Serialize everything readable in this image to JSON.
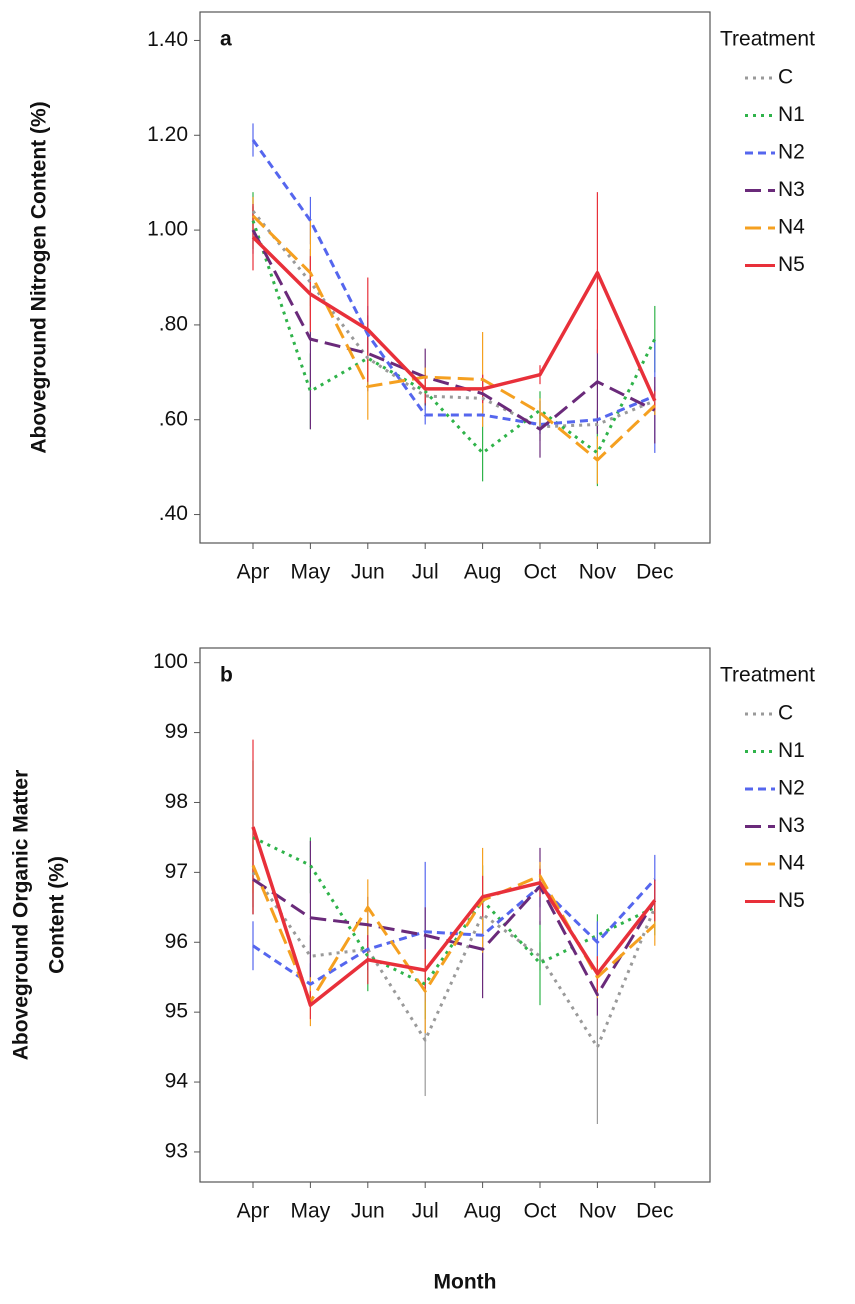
{
  "chart_data": [
    {
      "type": "line",
      "panel_label": "a",
      "y_label": [
        "Aboveground Nitrogen Content (%)"
      ],
      "legend_title": "Treatment",
      "categories": [
        "Apr",
        "May",
        "Jun",
        "Jul",
        "Aug",
        "Oct",
        "Nov",
        "Dec"
      ],
      "ylim": [
        0.34,
        1.46
      ],
      "yticks": [
        {
          "value": 0.4,
          "label": ".40"
        },
        {
          "value": 0.6,
          "label": ".60"
        },
        {
          "value": 0.8,
          "label": ".80"
        },
        {
          "value": 1.0,
          "label": "1.00"
        },
        {
          "value": 1.2,
          "label": "1.20"
        },
        {
          "value": 1.4,
          "label": "1.40"
        }
      ],
      "series": [
        {
          "name": "C",
          "color": "#9a9a9a",
          "style": "dotted",
          "values": [
            1.04,
            0.89,
            0.73,
            0.65,
            0.645,
            0.585,
            0.59,
            0.64
          ],
          "errors": [
            0.03,
            0.05,
            0.05,
            0.03,
            0.03,
            0.03,
            0.03,
            0.03
          ]
        },
        {
          "name": "N1",
          "color": "#2fb34a",
          "style": "dotted",
          "values": [
            1.02,
            0.66,
            0.73,
            0.66,
            0.53,
            0.62,
            0.53,
            0.77
          ],
          "errors": [
            0.06,
            0.08,
            0.06,
            0.03,
            0.06,
            0.04,
            0.07,
            0.07
          ]
        },
        {
          "name": "N2",
          "color": "#5566ee",
          "style": "dashed",
          "values": [
            1.19,
            1.02,
            0.78,
            0.61,
            0.61,
            0.59,
            0.6,
            0.65
          ],
          "errors": [
            0.035,
            0.05,
            0.06,
            0.02,
            0.02,
            0.02,
            0.02,
            0.12
          ]
        },
        {
          "name": "N3",
          "color": "#6a2a7a",
          "style": "longdash",
          "values": [
            1.0,
            0.77,
            0.74,
            0.69,
            0.655,
            0.58,
            0.68,
            0.62
          ],
          "errors": [
            0.05,
            0.19,
            0.08,
            0.06,
            0.04,
            0.06,
            0.11,
            0.07
          ]
        },
        {
          "name": "N4",
          "color": "#f5a020",
          "style": "longdash",
          "values": [
            1.03,
            0.91,
            0.67,
            0.69,
            0.685,
            0.615,
            0.515,
            0.63
          ],
          "errors": [
            0.04,
            0.11,
            0.07,
            0.02,
            0.1,
            0.03,
            0.05,
            0.02
          ]
        },
        {
          "name": "N5",
          "color": "#e8303a",
          "style": "solid",
          "values": [
            0.985,
            0.865,
            0.79,
            0.665,
            0.665,
            0.695,
            0.91,
            0.64
          ],
          "errors": [
            0.07,
            0.08,
            0.11,
            0.03,
            0.03,
            0.02,
            0.17,
            0.02
          ]
        }
      ]
    },
    {
      "type": "line",
      "panel_label": "b",
      "y_label": [
        "Aboveground Organic Matter",
        "Content (%)"
      ],
      "legend_title": "Treatment",
      "x_label": "Month",
      "categories": [
        "Apr",
        "May",
        "Jun",
        "Jul",
        "Aug",
        "Oct",
        "Nov",
        "Dec"
      ],
      "ylim": [
        92.57,
        100.21
      ],
      "yticks": [
        93,
        94,
        95,
        96,
        97,
        98,
        99,
        100
      ],
      "series": [
        {
          "name": "C",
          "color": "#9a9a9a",
          "style": "dotted",
          "values": [
            97.0,
            95.8,
            95.9,
            94.6,
            96.4,
            95.8,
            94.5,
            96.5
          ],
          "errors": [
            0.5,
            0.3,
            0.3,
            0.8,
            0.3,
            0.2,
            1.1,
            0.3
          ]
        },
        {
          "name": "N1",
          "color": "#2fb34a",
          "style": "dotted",
          "values": [
            97.5,
            97.1,
            95.8,
            95.4,
            96.6,
            95.7,
            96.1,
            96.5
          ],
          "errors": [
            1.1,
            0.4,
            0.5,
            0.5,
            0.5,
            0.6,
            0.3,
            0.4
          ]
        },
        {
          "name": "N2",
          "color": "#5566ee",
          "style": "dashed",
          "values": [
            95.95,
            95.4,
            95.9,
            96.15,
            96.1,
            96.8,
            96.0,
            96.9
          ],
          "errors": [
            0.35,
            0.3,
            0.3,
            1.0,
            0.5,
            0.3,
            0.3,
            0.35
          ]
        },
        {
          "name": "N3",
          "color": "#6a2a7a",
          "style": "longdash",
          "values": [
            96.9,
            96.35,
            96.25,
            96.1,
            95.9,
            96.8,
            95.25,
            96.6
          ],
          "errors": [
            0.5,
            1.1,
            0.4,
            0.4,
            0.7,
            0.55,
            0.3,
            0.3
          ]
        },
        {
          "name": "N4",
          "color": "#f5a020",
          "style": "longdash",
          "values": [
            97.1,
            95.15,
            96.5,
            95.3,
            96.6,
            96.95,
            95.5,
            96.25
          ],
          "errors": [
            0.4,
            0.35,
            0.4,
            0.6,
            0.75,
            0.2,
            0.3,
            0.3
          ]
        },
        {
          "name": "N5",
          "color": "#e8303a",
          "style": "solid",
          "values": [
            97.65,
            95.1,
            95.75,
            95.6,
            96.65,
            96.85,
            95.55,
            96.6
          ],
          "errors": [
            1.25,
            0.2,
            0.35,
            0.3,
            0.3,
            0.2,
            0.25,
            0.3
          ]
        }
      ]
    }
  ]
}
